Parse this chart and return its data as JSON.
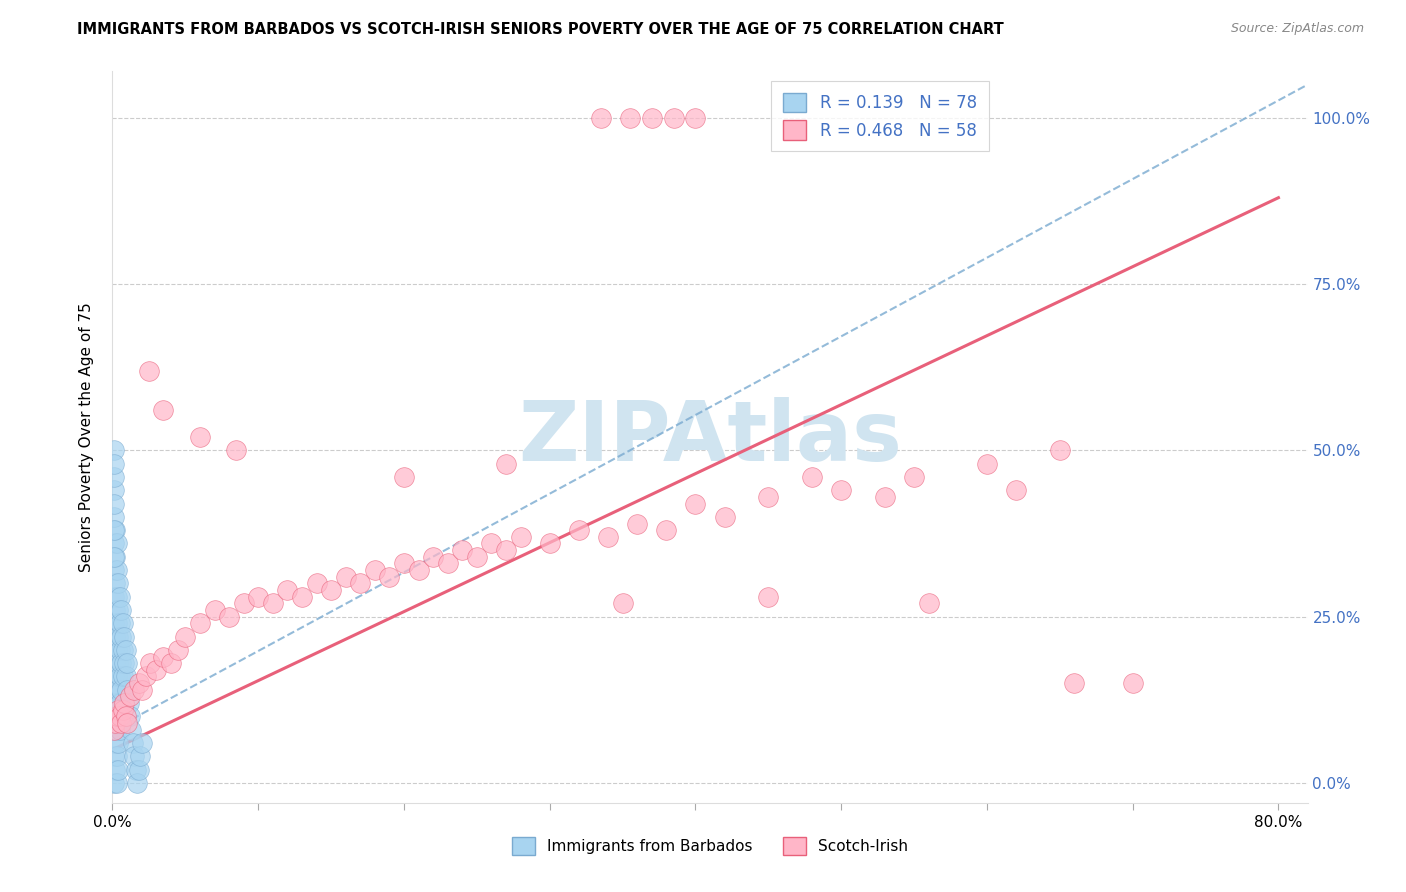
{
  "title": "IMMIGRANTS FROM BARBADOS VS SCOTCH-IRISH SENIORS POVERTY OVER THE AGE OF 75 CORRELATION CHART",
  "source": "Source: ZipAtlas.com",
  "ylabel": "Seniors Poverty Over the Age of 75",
  "legend_label1": "Immigrants from Barbados",
  "legend_label2": "Scotch-Irish",
  "r1": 0.139,
  "n1": 78,
  "r2": 0.468,
  "n2": 58,
  "color1": "#A8D4F0",
  "color2": "#FFB6C8",
  "trendline1_color": "#7AAAD0",
  "trendline2_color": "#E8607A",
  "watermark": "ZIPAtlas",
  "watermark_color": "#D0E4F0",
  "xlim": [
    0.0,
    0.82
  ],
  "ylim": [
    -0.03,
    1.07
  ],
  "xtick_positions": [
    0.0,
    0.1,
    0.2,
    0.3,
    0.4,
    0.5,
    0.6,
    0.7,
    0.8
  ],
  "xtick_labels": [
    "0.0%",
    "",
    "",
    "",
    "",
    "",
    "",
    "",
    "80.0%"
  ],
  "ytick_positions": [
    0.0,
    0.25,
    0.5,
    0.75,
    1.0
  ],
  "ytick_labels_right": [
    "0.0%",
    "25.0%",
    "50.0%",
    "75.0%",
    "100.0%"
  ],
  "blue_color_text": "#4472C4",
  "barbados_x": [
    0.001,
    0.001,
    0.001,
    0.001,
    0.001,
    0.001,
    0.001,
    0.001,
    0.001,
    0.001,
    0.002,
    0.002,
    0.002,
    0.002,
    0.002,
    0.002,
    0.002,
    0.002,
    0.002,
    0.002,
    0.003,
    0.003,
    0.003,
    0.003,
    0.003,
    0.003,
    0.003,
    0.003,
    0.003,
    0.003,
    0.004,
    0.004,
    0.004,
    0.004,
    0.004,
    0.004,
    0.004,
    0.004,
    0.005,
    0.005,
    0.005,
    0.005,
    0.005,
    0.005,
    0.006,
    0.006,
    0.006,
    0.006,
    0.007,
    0.007,
    0.007,
    0.008,
    0.008,
    0.009,
    0.009,
    0.01,
    0.01,
    0.011,
    0.012,
    0.013,
    0.014,
    0.015,
    0.016,
    0.017,
    0.018,
    0.019,
    0.02,
    0.001,
    0.001,
    0.001,
    0.001,
    0.001,
    0.001,
    0.001,
    0.001
  ],
  "barbados_y": [
    0.32,
    0.28,
    0.24,
    0.2,
    0.16,
    0.12,
    0.08,
    0.04,
    0.0,
    0.36,
    0.3,
    0.26,
    0.22,
    0.18,
    0.14,
    0.1,
    0.06,
    0.02,
    0.34,
    0.38,
    0.28,
    0.24,
    0.2,
    0.16,
    0.12,
    0.08,
    0.04,
    0.0,
    0.32,
    0.36,
    0.26,
    0.22,
    0.18,
    0.14,
    0.1,
    0.06,
    0.02,
    0.3,
    0.24,
    0.2,
    0.16,
    0.12,
    0.08,
    0.28,
    0.22,
    0.18,
    0.14,
    0.26,
    0.2,
    0.16,
    0.24,
    0.18,
    0.22,
    0.16,
    0.2,
    0.14,
    0.18,
    0.12,
    0.1,
    0.08,
    0.06,
    0.04,
    0.02,
    0.0,
    0.02,
    0.04,
    0.06,
    0.4,
    0.44,
    0.38,
    0.34,
    0.42,
    0.46,
    0.5,
    0.48
  ],
  "scotchirish_x": [
    0.001,
    0.002,
    0.003,
    0.004,
    0.005,
    0.006,
    0.007,
    0.008,
    0.009,
    0.01,
    0.012,
    0.015,
    0.018,
    0.02,
    0.023,
    0.026,
    0.03,
    0.035,
    0.04,
    0.045,
    0.05,
    0.06,
    0.07,
    0.08,
    0.09,
    0.1,
    0.11,
    0.12,
    0.13,
    0.14,
    0.15,
    0.16,
    0.17,
    0.18,
    0.19,
    0.2,
    0.21,
    0.22,
    0.23,
    0.24,
    0.25,
    0.26,
    0.27,
    0.28,
    0.3,
    0.32,
    0.34,
    0.36,
    0.38,
    0.4,
    0.42,
    0.45,
    0.5,
    0.55,
    0.6,
    0.65,
    0.7
  ],
  "scotchirish_y": [
    0.08,
    0.09,
    0.1,
    0.11,
    0.1,
    0.09,
    0.11,
    0.12,
    0.1,
    0.09,
    0.13,
    0.14,
    0.15,
    0.14,
    0.16,
    0.18,
    0.17,
    0.19,
    0.18,
    0.2,
    0.22,
    0.24,
    0.26,
    0.25,
    0.27,
    0.28,
    0.27,
    0.29,
    0.28,
    0.3,
    0.29,
    0.31,
    0.3,
    0.32,
    0.31,
    0.33,
    0.32,
    0.34,
    0.33,
    0.35,
    0.34,
    0.36,
    0.35,
    0.37,
    0.36,
    0.38,
    0.37,
    0.39,
    0.38,
    0.42,
    0.4,
    0.43,
    0.44,
    0.46,
    0.48,
    0.5,
    0.15
  ],
  "outlier_pink_x": [
    0.025,
    0.035,
    0.06,
    0.085,
    0.2,
    0.27,
    0.35,
    0.45,
    0.48,
    0.53,
    0.56,
    0.62,
    0.66
  ],
  "outlier_pink_y": [
    0.62,
    0.56,
    0.52,
    0.5,
    0.46,
    0.48,
    0.27,
    0.28,
    0.46,
    0.43,
    0.27,
    0.44,
    0.15
  ],
  "top_points_x": [
    0.335,
    0.355,
    0.37,
    0.385,
    0.4
  ],
  "top_points_y": [
    1.0,
    1.0,
    1.0,
    1.0,
    1.0
  ],
  "trendline1_x0": 0.0,
  "trendline1_y0": 0.08,
  "trendline1_x1": 0.82,
  "trendline1_y1": 1.05,
  "trendline2_x0": 0.0,
  "trendline2_y0": 0.05,
  "trendline2_x1": 0.8,
  "trendline2_y1": 0.88
}
